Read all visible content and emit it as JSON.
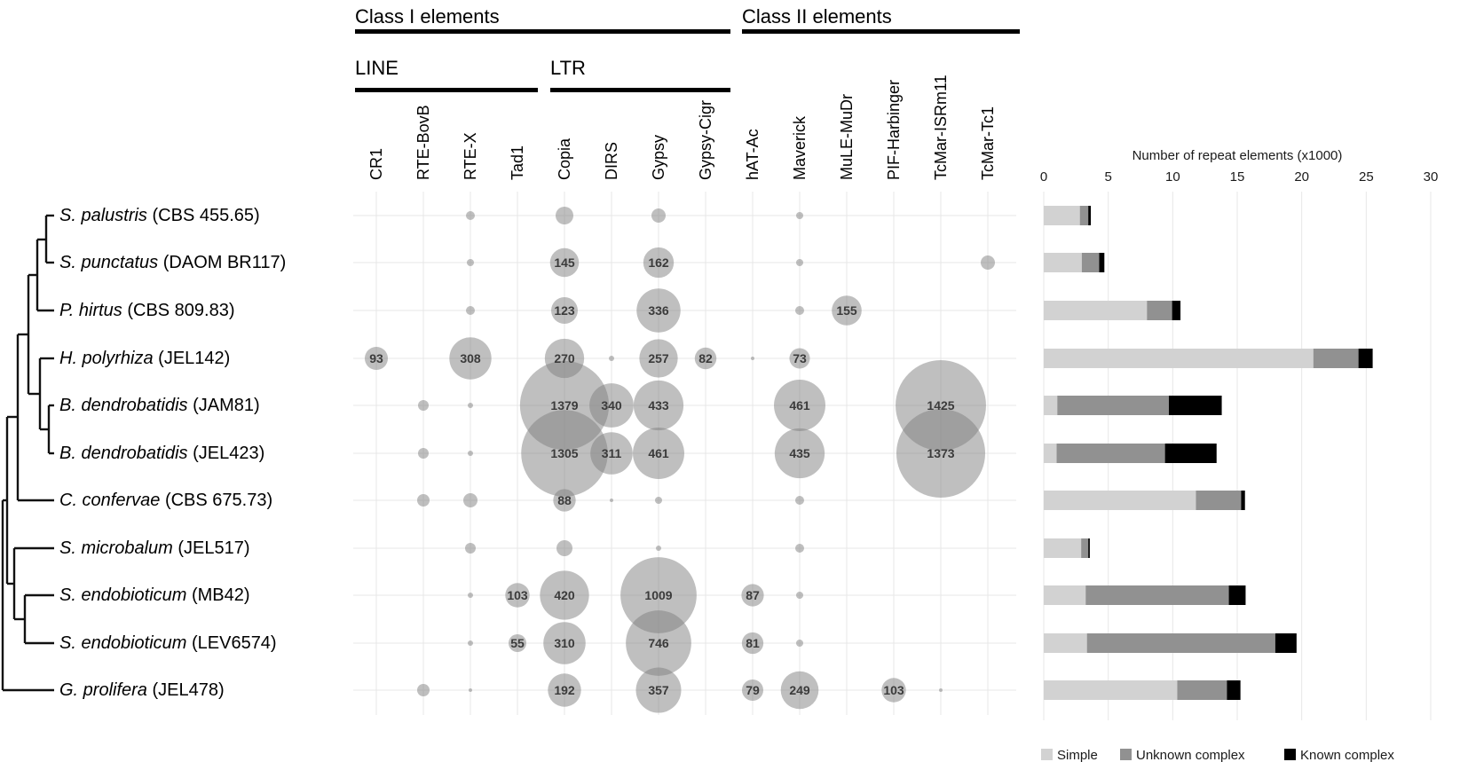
{
  "header": {
    "class1_label": "Class I elements",
    "class2_label": "Class II elements",
    "line_label": "LINE",
    "ltr_label": "LTR"
  },
  "colors": {
    "bubble_fill": "#808080",
    "bubble_opacity": 0.5,
    "bubble_label": "#3b3b3b",
    "gridline": "#e7e7e7",
    "tree_line": "#111111",
    "bar_simple": "#d2d2d2",
    "bar_unknown": "#919191",
    "bar_known": "#000000"
  },
  "chart_data": [
    {
      "type": "heatmap",
      "subtype": "bubble-matrix",
      "column_groups": [
        {
          "label": "Class I elements",
          "sub_groups": [
            {
              "label": "LINE",
              "columns": [
                "CR1",
                "RTE-BovB",
                "RTE-X",
                "Tad1"
              ]
            },
            {
              "label": "LTR",
              "columns": [
                "Copia",
                "DIRS",
                "Gypsy",
                "Gypsy-Cigr"
              ]
            }
          ]
        },
        {
          "label": "Class II elements",
          "columns": [
            "hAT-Ac",
            "Maverick",
            "MuLE-MuDr",
            "PIF-Harbinger",
            "TcMar-ISRm11",
            "TcMar-Tc1"
          ]
        }
      ],
      "columns": [
        "CR1",
        "RTE-BovB",
        "RTE-X",
        "Tad1",
        "Copia",
        "DIRS",
        "Gypsy",
        "Gypsy-Cigr",
        "hAT-Ac",
        "Maverick",
        "MuLE-MuDr",
        "PIF-Harbinger",
        "TcMar-ISRm11",
        "TcMar-Tc1"
      ],
      "rows": [
        {
          "species": "S. palustris",
          "strain": "(CBS 455.65)"
        },
        {
          "species": "S. punctatus",
          "strain": "(DAOM BR117)"
        },
        {
          "species": "P. hirtus",
          "strain": "(CBS 809.83)"
        },
        {
          "species": "H. polyrhiza",
          "strain": "(JEL142)"
        },
        {
          "species": "B. dendrobatidis",
          "strain": "(JAM81)"
        },
        {
          "species": "B. dendrobatidis",
          "strain": "(JEL423)"
        },
        {
          "species": "C. confervae",
          "strain": "(CBS 675.73)"
        },
        {
          "species": "S. microbalum",
          "strain": "(JEL517)"
        },
        {
          "species": "S. endobioticum",
          "strain": "(MB42)"
        },
        {
          "species": "S. endobioticum",
          "strain": "(LEV6574)"
        },
        {
          "species": "G. prolifera",
          "strain": "(JEL478)"
        }
      ],
      "bubbles": [
        [
          {
            "c": 2,
            "r": 5
          },
          {
            "c": 4,
            "r": 10
          },
          {
            "c": 6,
            "r": 8
          },
          {
            "c": 9,
            "r": 4
          }
        ],
        [
          {
            "c": 2,
            "r": 4
          },
          {
            "c": 4,
            "v": 145
          },
          {
            "c": 6,
            "v": 162
          },
          {
            "c": 9,
            "r": 4
          },
          {
            "c": 13,
            "r": 8
          }
        ],
        [
          {
            "c": 2,
            "r": 5
          },
          {
            "c": 4,
            "v": 123
          },
          {
            "c": 6,
            "v": 336
          },
          {
            "c": 9,
            "r": 5
          },
          {
            "c": 10,
            "v": 155
          }
        ],
        [
          {
            "c": 0,
            "v": 93
          },
          {
            "c": 2,
            "v": 308
          },
          {
            "c": 4,
            "v": 270
          },
          {
            "c": 5,
            "r": 3
          },
          {
            "c": 6,
            "v": 257
          },
          {
            "c": 7,
            "v": 82
          },
          {
            "c": 8,
            "r": 2
          },
          {
            "c": 9,
            "v": 73
          }
        ],
        [
          {
            "c": 1,
            "r": 6
          },
          {
            "c": 2,
            "r": 3
          },
          {
            "c": 4,
            "v": 1379
          },
          {
            "c": 5,
            "v": 340
          },
          {
            "c": 6,
            "v": 433
          },
          {
            "c": 9,
            "v": 461
          },
          {
            "c": 12,
            "v": 1425
          }
        ],
        [
          {
            "c": 1,
            "r": 6
          },
          {
            "c": 2,
            "r": 3
          },
          {
            "c": 4,
            "v": 1305
          },
          {
            "c": 5,
            "v": 311
          },
          {
            "c": 6,
            "v": 461
          },
          {
            "c": 9,
            "v": 435
          },
          {
            "c": 12,
            "v": 1373
          }
        ],
        [
          {
            "c": 1,
            "r": 7
          },
          {
            "c": 2,
            "r": 8
          },
          {
            "c": 4,
            "v": 88
          },
          {
            "c": 5,
            "r": 2
          },
          {
            "c": 6,
            "r": 4
          },
          {
            "c": 9,
            "r": 5
          }
        ],
        [
          {
            "c": 2,
            "r": 6
          },
          {
            "c": 4,
            "r": 9
          },
          {
            "c": 6,
            "r": 3
          },
          {
            "c": 9,
            "r": 5
          }
        ],
        [
          {
            "c": 2,
            "r": 3
          },
          {
            "c": 3,
            "v": 103
          },
          {
            "c": 4,
            "v": 420
          },
          {
            "c": 6,
            "v": 1009
          },
          {
            "c": 8,
            "v": 87
          },
          {
            "c": 9,
            "r": 4
          }
        ],
        [
          {
            "c": 2,
            "r": 3
          },
          {
            "c": 3,
            "v": 55
          },
          {
            "c": 4,
            "v": 310
          },
          {
            "c": 6,
            "v": 746
          },
          {
            "c": 8,
            "v": 81
          },
          {
            "c": 9,
            "r": 4
          }
        ],
        [
          {
            "c": 1,
            "r": 7
          },
          {
            "c": 2,
            "r": 2
          },
          {
            "c": 4,
            "v": 192
          },
          {
            "c": 6,
            "v": 357
          },
          {
            "c": 8,
            "v": 79
          },
          {
            "c": 9,
            "v": 249
          },
          {
            "c": 11,
            "v": 103
          },
          {
            "c": 12,
            "r": 2
          }
        ]
      ]
    },
    {
      "type": "bar",
      "orientation": "horizontal",
      "stacked": true,
      "title": "Number of repeat elements (x1000)",
      "xlabel": "Number of repeat elements (x1000)",
      "xlim": [
        0,
        30
      ],
      "ticks": [
        "0",
        "5",
        "10",
        "15",
        "20",
        "25",
        "30"
      ],
      "tick_values": [
        0,
        5,
        10,
        15,
        20,
        25,
        30
      ],
      "grid": true,
      "legend_position": "bottom-right",
      "legend": [
        {
          "label": "Simple",
          "color": "#d2d2d2"
        },
        {
          "label": "Unknown complex",
          "color": "#919191"
        },
        {
          "label": "Known complex",
          "color": "#000000"
        }
      ],
      "series": [
        {
          "row": "S. palustris (CBS 455.65)",
          "simple": 2.8,
          "unknown_complex": 0.65,
          "known_complex": 0.2
        },
        {
          "row": "S. punctatus (DAOM BR117)",
          "simple": 2.95,
          "unknown_complex": 1.35,
          "known_complex": 0.4
        },
        {
          "row": "P. hirtus (CBS 809.83)",
          "simple": 8.0,
          "unknown_complex": 1.95,
          "known_complex": 0.65
        },
        {
          "row": "H. polyrhiza (JEL142)",
          "simple": 20.9,
          "unknown_complex": 3.5,
          "known_complex": 1.1
        },
        {
          "row": "B. dendrobatidis (JAM81)",
          "simple": 1.05,
          "unknown_complex": 8.65,
          "known_complex": 4.1
        },
        {
          "row": "B. dendrobatidis (JEL423)",
          "simple": 1.0,
          "unknown_complex": 8.4,
          "known_complex": 4.0
        },
        {
          "row": "C. confervae (CBS 675.73)",
          "simple": 11.8,
          "unknown_complex": 3.5,
          "known_complex": 0.3
        },
        {
          "row": "S. microbalum (JEL517)",
          "simple": 2.9,
          "unknown_complex": 0.55,
          "known_complex": 0.12
        },
        {
          "row": "S. endobioticum (MB42)",
          "simple": 3.25,
          "unknown_complex": 11.1,
          "known_complex": 1.3
        },
        {
          "row": "S. endobioticum (LEV6574)",
          "simple": 3.35,
          "unknown_complex": 14.6,
          "known_complex": 1.65
        },
        {
          "row": "G. prolifera (JEL478)",
          "simple": 10.35,
          "unknown_complex": 3.85,
          "known_complex": 1.05
        }
      ]
    }
  ]
}
